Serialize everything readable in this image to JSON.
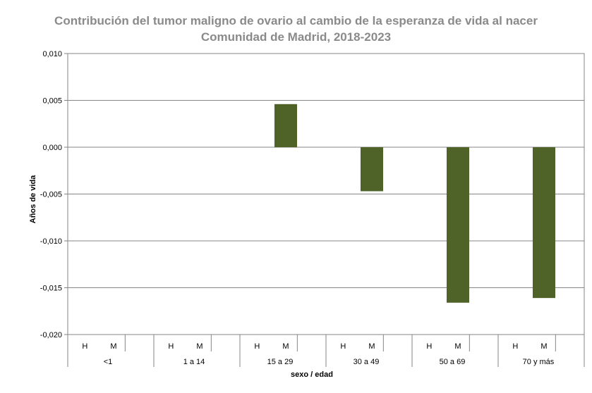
{
  "chart_data": {
    "type": "bar",
    "title": "Contribución del tumor maligno de ovario al cambio de la esperanza de vida al nacer",
    "subtitle": "Comunidad de Madrid, 2018-2023",
    "xlabel": "sexo / edad",
    "ylabel": "Años de vida",
    "ylim": [
      -0.02,
      0.01
    ],
    "yticks": [
      "0,010",
      "0,005",
      "0,000",
      "-0,005",
      "-0,010",
      "-0,015",
      "-0,020"
    ],
    "ytick_values": [
      0.01,
      0.005,
      0,
      -0.005,
      -0.01,
      -0.015,
      -0.02
    ],
    "grid": true,
    "groups": [
      "<1",
      "1 a 14",
      "15 a 29",
      "30 a 49",
      "50 a 69",
      "70 y más"
    ],
    "subcategories": [
      "H",
      "M"
    ],
    "series": [
      {
        "values": [
          [
            0,
            0
          ],
          [
            0,
            0
          ],
          [
            0,
            0.0046
          ],
          [
            0,
            -0.0047
          ],
          [
            0,
            -0.0166
          ],
          [
            0,
            -0.0161
          ]
        ]
      }
    ],
    "bar_color": "#4f6228"
  }
}
